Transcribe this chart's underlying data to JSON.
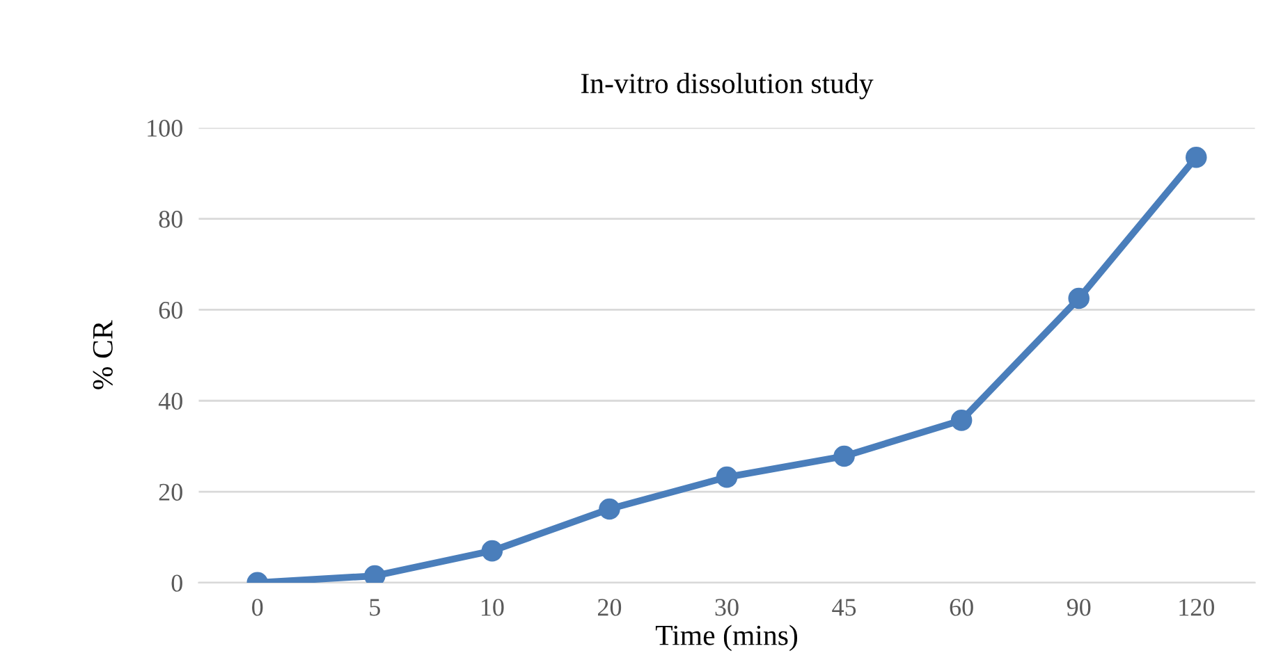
{
  "chart_data": {
    "type": "line",
    "title": "In-vitro dissolution study",
    "xlabel": "Time (mins)",
    "ylabel": "% CR",
    "categories": [
      "0",
      "5",
      "10",
      "20",
      "30",
      "45",
      "60",
      "90",
      "120"
    ],
    "series": [
      {
        "color": "#4a7ebb",
        "values": [
          0,
          1.5,
          7,
          16.2,
          23.2,
          27.8,
          35.7,
          62.5,
          93.5
        ]
      }
    ],
    "ylim": [
      0,
      100
    ],
    "yticks": [
      0,
      20,
      40,
      60,
      80,
      100
    ],
    "grid": "y",
    "marker": "circle",
    "line_style": "solid"
  }
}
